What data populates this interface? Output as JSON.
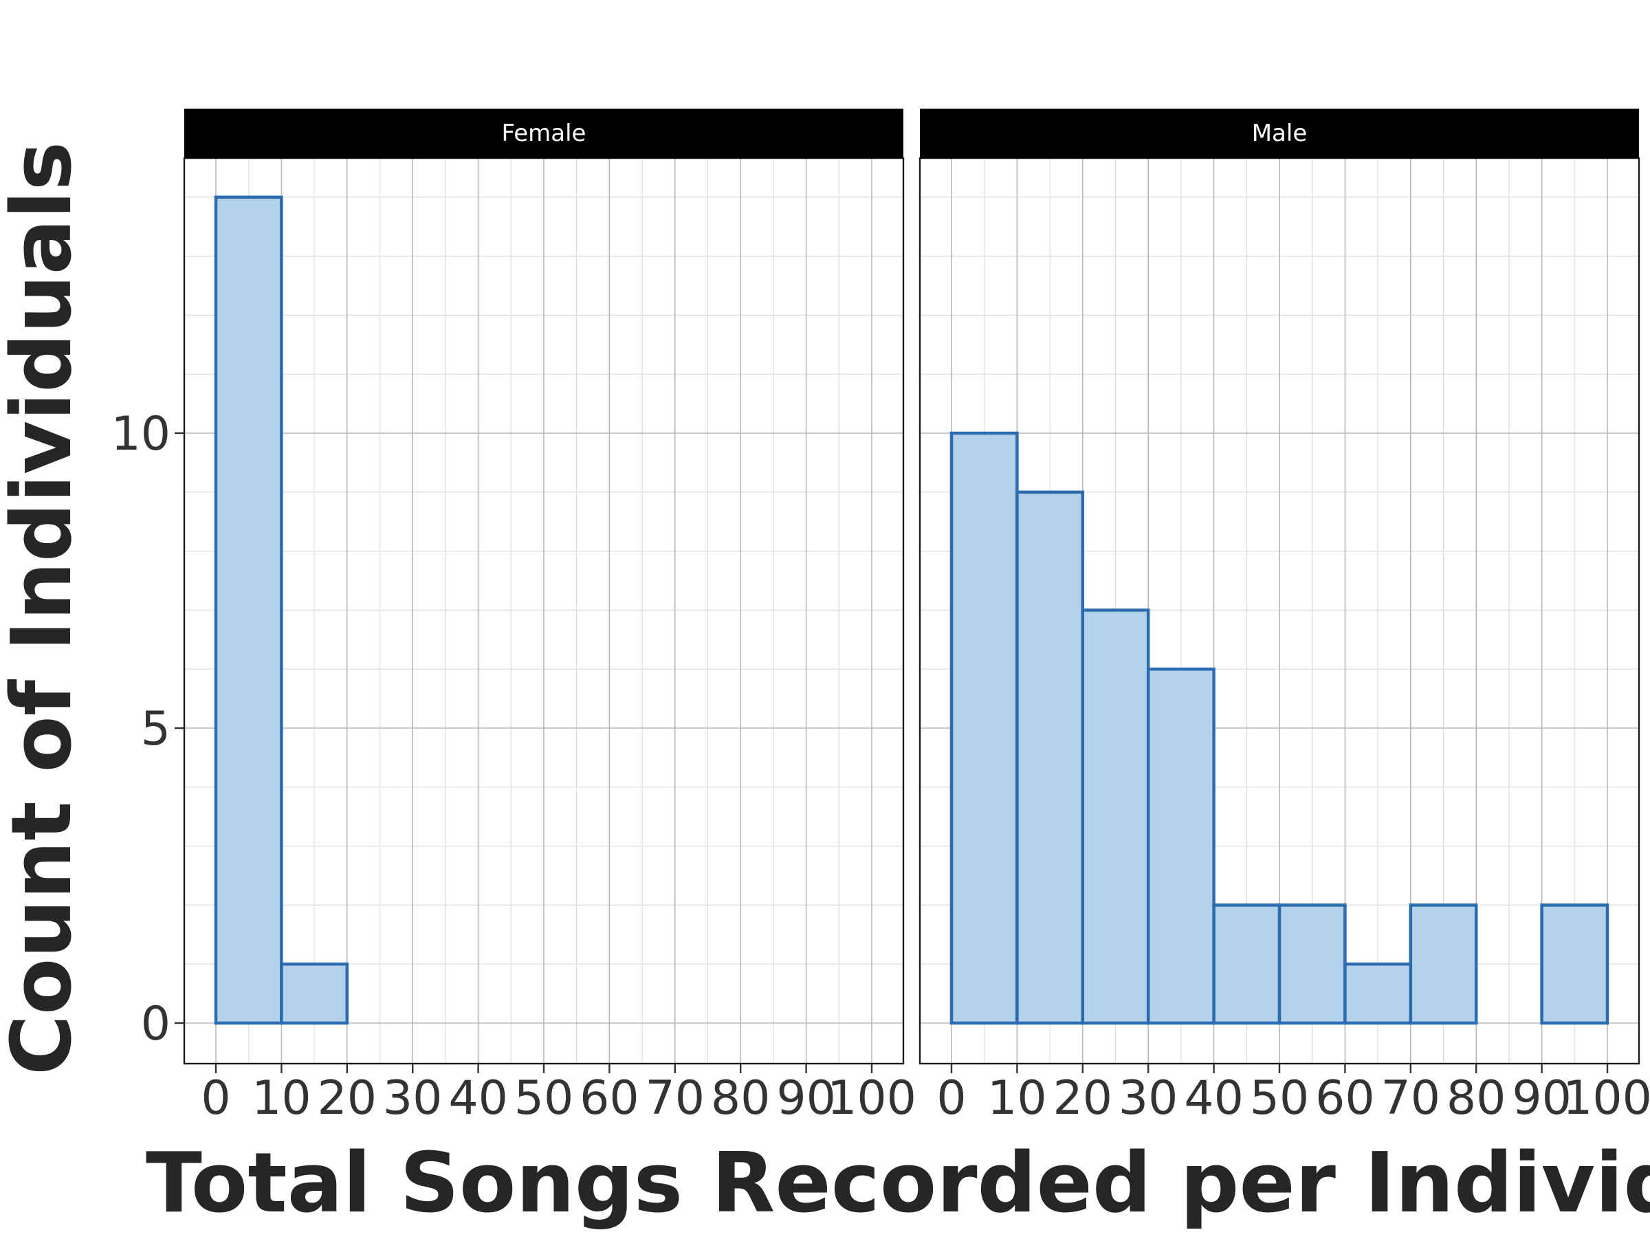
{
  "chart_data": {
    "type": "bar",
    "subtype": "faceted-histogram",
    "xlabel": "Total Songs Recorded per Individua",
    "ylabel": "Count of Individuals",
    "xlim": [
      0,
      100
    ],
    "ylim": [
      0,
      14
    ],
    "x_ticks": [
      0,
      10,
      20,
      30,
      40,
      50,
      60,
      70,
      80,
      90,
      100
    ],
    "y_ticks": [
      0,
      5,
      10
    ],
    "bins": [
      [
        0,
        10
      ],
      [
        10,
        20
      ],
      [
        20,
        30
      ],
      [
        30,
        40
      ],
      [
        40,
        50
      ],
      [
        50,
        60
      ],
      [
        60,
        70
      ],
      [
        70,
        80
      ],
      [
        80,
        90
      ],
      [
        90,
        100
      ]
    ],
    "grid": true,
    "legend": "none",
    "colors": {
      "fill": "#b3d1e8",
      "outline": "#2b6cb0",
      "strip": "#000000"
    },
    "facets": [
      {
        "name": "Female",
        "values": [
          14,
          1,
          0,
          0,
          0,
          0,
          0,
          0,
          0,
          0
        ]
      },
      {
        "name": "Male",
        "values": [
          10,
          9,
          7,
          6,
          2,
          2,
          1,
          2,
          0,
          2
        ]
      }
    ]
  }
}
